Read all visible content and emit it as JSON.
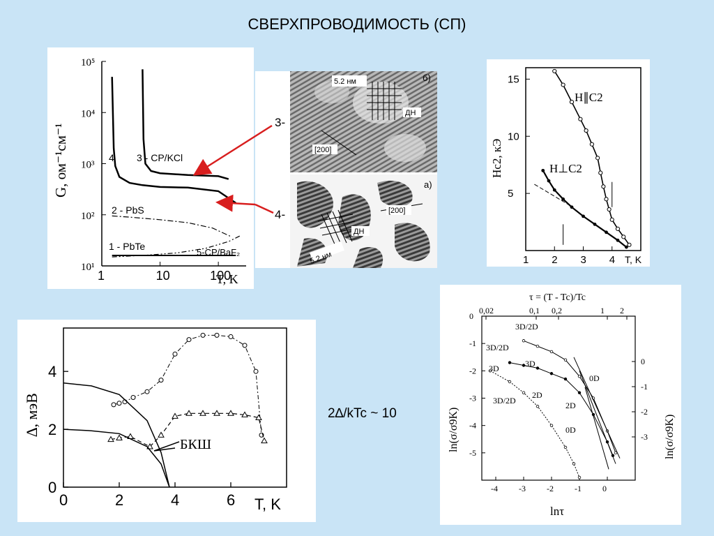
{
  "title": "СВЕРХПРОВОДИМОСТЬ (СП)",
  "formula": "2∆/kTc ~ 10",
  "figure1": {
    "ylabel": "G, ом⁻¹см⁻¹",
    "xlabel": "T, K",
    "y_ticks": [
      "10⁵",
      "10⁴",
      "10³",
      "10²",
      "10¹"
    ],
    "x_ticks": [
      "1",
      "10",
      "100"
    ],
    "curve_labels": [
      "4",
      "3 - CP/KCl",
      "2 - PbS",
      "1 - PbTe",
      "5-CP/BaF₂"
    ]
  },
  "micrograph": {
    "labels": [
      "3-",
      "4-"
    ],
    "annotations": [
      "5.2 нм",
      "б)",
      "ДН",
      "[200]",
      "а)",
      "[200]",
      "ДН",
      "5.2 нм"
    ]
  },
  "figure2": {
    "ylabel": "Hc2, кЭ",
    "xlabel": "T, K",
    "y_ticks": [
      "15",
      "10",
      "5"
    ],
    "x_ticks": [
      "1",
      "2",
      "3",
      "4"
    ],
    "curve_labels": [
      "H∥C2",
      "H⊥C2"
    ]
  },
  "figure3": {
    "ylabel": "∆, мэВ",
    "xlabel": "T, K",
    "y_ticks": [
      "4",
      "2",
      "0"
    ],
    "x_ticks": [
      "0",
      "2",
      "4",
      "6"
    ],
    "annotation": "БКШ"
  },
  "figure4": {
    "top_label": "τ = (T - Tc)/Tc",
    "top_ticks": [
      "0,02",
      "0,1",
      "0,2",
      "1",
      "2"
    ],
    "bottom_label": "lnτ",
    "bottom_ticks": [
      "-4",
      "-3",
      "-2",
      "-1",
      "0"
    ],
    "left_label": "ln(σ/σ9K)",
    "right_label": "ln(σ/σ9K)",
    "left_ticks": [
      "0",
      "-1",
      "-2",
      "-3",
      "-4",
      "-5"
    ],
    "right_ticks": [
      "0",
      "-1",
      "-2",
      "-3"
    ],
    "curve_labels": [
      "3D/2D",
      "3D/2D",
      "3D",
      "0D",
      "3D",
      "2D",
      "3D/2D",
      "2D",
      "0D"
    ]
  },
  "colors": {
    "background": "#c9e4f6",
    "arrow": "#d81e1e"
  },
  "chart_data": [
    {
      "type": "line",
      "title": "",
      "xlabel": "T, K",
      "ylabel": "G, ом⁻¹см⁻¹",
      "xscale": "log",
      "yscale": "log",
      "xlim": [
        1,
        300
      ],
      "ylim": [
        10,
        100000
      ],
      "series": [
        {
          "name": "4",
          "x": [
            1.5,
            1.6,
            1.7,
            2,
            3,
            5,
            10,
            30,
            100,
            200
          ],
          "y": [
            50000,
            2000,
            900,
            550,
            420,
            380,
            350,
            340,
            290,
            170
          ]
        },
        {
          "name": "3 - CP/KCl",
          "x": [
            5,
            5.2,
            5.6,
            7,
            10,
            30,
            100,
            150
          ],
          "y": [
            70000,
            3000,
            1000,
            720,
            650,
            600,
            570,
            500
          ]
        },
        {
          "name": "2 - PbS",
          "x": [
            1.5,
            3,
            10,
            30,
            80,
            160
          ],
          "y": [
            95,
            90,
            80,
            70,
            55,
            38
          ]
        },
        {
          "name": "1 - PbTe",
          "x": [
            1.5,
            3,
            10,
            30,
            100,
            200
          ],
          "y": [
            16,
            16,
            16,
            16,
            16,
            16
          ]
        },
        {
          "name": "5-CP/BaF₂",
          "x": [
            1.5,
            5,
            20,
            60,
            150,
            250
          ],
          "y": [
            15,
            16,
            18,
            22,
            30,
            40
          ]
        }
      ]
    },
    {
      "type": "line",
      "title": "",
      "xlabel": "T, K",
      "ylabel": "Hc2, кЭ",
      "xlim": [
        1,
        5
      ],
      "ylim": [
        0,
        16
      ],
      "series": [
        {
          "name": "H∥C2",
          "x": [
            2.0,
            2.3,
            2.6,
            2.9,
            3.1,
            3.3,
            3.5,
            3.6,
            3.7,
            3.8,
            3.9,
            4.0,
            4.2,
            4.4,
            4.6
          ],
          "y": [
            15.7,
            14.5,
            13.0,
            11.5,
            10.5,
            9.3,
            8.1,
            6.8,
            5.6,
            4.5,
            3.6,
            2.7,
            1.9,
            1.2,
            0.5
          ]
        },
        {
          "name": "H⊥C2",
          "x": [
            1.6,
            1.8,
            2.0,
            2.3,
            2.6,
            3.0,
            3.4,
            3.8,
            4.2,
            4.5
          ],
          "y": [
            7.0,
            6.1,
            5.3,
            4.5,
            3.8,
            3.0,
            2.3,
            1.6,
            0.9,
            0.3
          ]
        }
      ]
    },
    {
      "type": "line",
      "title": "",
      "xlabel": "T, K",
      "ylabel": "∆, мэВ",
      "xlim": [
        0,
        8
      ],
      "ylim": [
        0,
        5.5
      ],
      "series": [
        {
          "name": "circles",
          "x": [
            1.8,
            2.0,
            2.2,
            2.5,
            3.0,
            3.5,
            4.0,
            4.5,
            5.0,
            5.5,
            6.0,
            6.5,
            6.9,
            7.1
          ],
          "y": [
            2.85,
            2.9,
            2.95,
            3.1,
            3.3,
            3.7,
            4.6,
            5.1,
            5.25,
            5.25,
            5.2,
            4.9,
            4.0,
            1.8
          ]
        },
        {
          "name": "triangles",
          "x": [
            1.7,
            2.0,
            2.4,
            3.1,
            3.5,
            4.0,
            4.5,
            5.0,
            5.5,
            6.0,
            6.5,
            7.0,
            7.2
          ],
          "y": [
            1.65,
            1.7,
            1.75,
            1.4,
            1.8,
            2.45,
            2.55,
            2.55,
            2.55,
            2.55,
            2.5,
            2.4,
            1.6
          ]
        },
        {
          "name": "БКШ-1",
          "x": [
            0,
            1,
            2,
            3,
            3.5,
            3.8
          ],
          "y": [
            3.6,
            3.5,
            3.2,
            2.3,
            1.2,
            0
          ]
        },
        {
          "name": "БКШ-2",
          "x": [
            0,
            1,
            2,
            3,
            3.5,
            3.8
          ],
          "y": [
            2.0,
            1.95,
            1.85,
            1.4,
            0.8,
            0
          ]
        }
      ]
    },
    {
      "type": "line",
      "title": "",
      "xlabel": "lnτ",
      "ylabel": "ln(σ/σ9K)",
      "xlim": [
        -4.5,
        1
      ],
      "ylim": [
        -6,
        0
      ],
      "series": [
        {
          "name": "3D/2D",
          "x": [
            -3.0,
            -2.5,
            -2.0,
            -1.5,
            -1.0,
            -0.5,
            0.0,
            0.3
          ],
          "y": [
            -0.9,
            -1.1,
            -1.3,
            -1.6,
            -2.2,
            -3.0,
            -4.2,
            -5.0
          ]
        },
        {
          "name": "3D",
          "x": [
            -3.5,
            -3.0,
            -2.5,
            -2.0,
            -1.5,
            -1.0,
            -0.5,
            0.0,
            0.2
          ],
          "y": [
            -1.7,
            -1.8,
            -1.9,
            -2.1,
            -2.3,
            -2.8,
            -3.6,
            -4.6,
            -5.1
          ]
        },
        {
          "name": "0D",
          "x": [
            -4.2,
            -3.5,
            -3.0,
            -2.5,
            -2.0,
            -1.5,
            -1.2,
            -1.0
          ],
          "y": [
            -2.0,
            -2.4,
            -2.8,
            -3.3,
            -4.0,
            -4.8,
            -5.4,
            -5.9
          ]
        }
      ]
    }
  ]
}
